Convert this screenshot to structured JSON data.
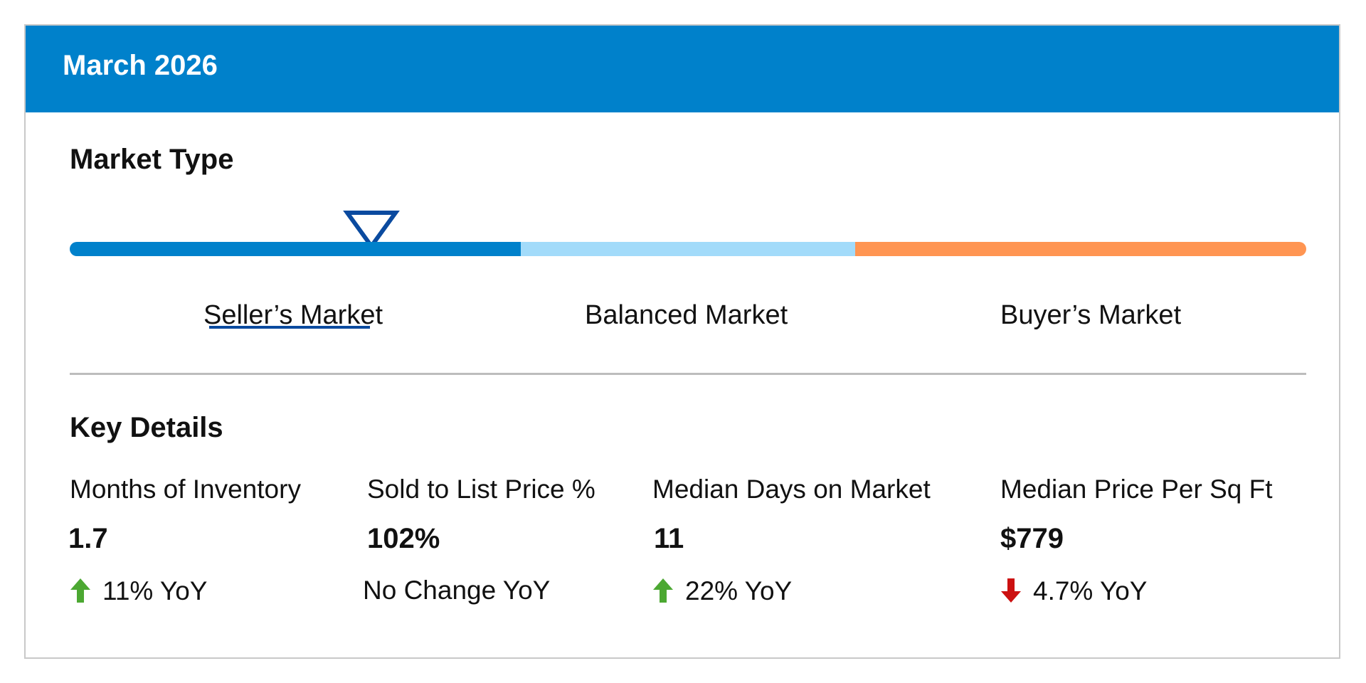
{
  "header": {
    "title": "March 2026"
  },
  "market_type": {
    "title": "Market Type",
    "labels": {
      "seller": "Seller’s Market",
      "balanced": "Balanced Market",
      "buyer": "Buyer’s Market"
    },
    "selected": "seller",
    "colors": {
      "seller": "#0081cb",
      "balanced": "#a2dbfa",
      "buyer": "#ff9552",
      "marker": "#0a4a9f"
    }
  },
  "key_details": {
    "title": "Key Details",
    "metrics": [
      {
        "label": "Months of Inventory",
        "value": "1.7",
        "change_text": "11% YoY",
        "direction": "up"
      },
      {
        "label": "Sold to List Price %",
        "value": "102%",
        "change_text": "No Change YoY",
        "direction": "none"
      },
      {
        "label": "Median Days on Market",
        "value": "11",
        "change_text": "22% YoY",
        "direction": "up"
      },
      {
        "label": "Median Price Per Sq Ft",
        "value": "$779",
        "change_text": "4.7% YoY",
        "direction": "down"
      }
    ],
    "arrow_colors": {
      "up": "#4ca832",
      "down": "#cc1111"
    }
  }
}
